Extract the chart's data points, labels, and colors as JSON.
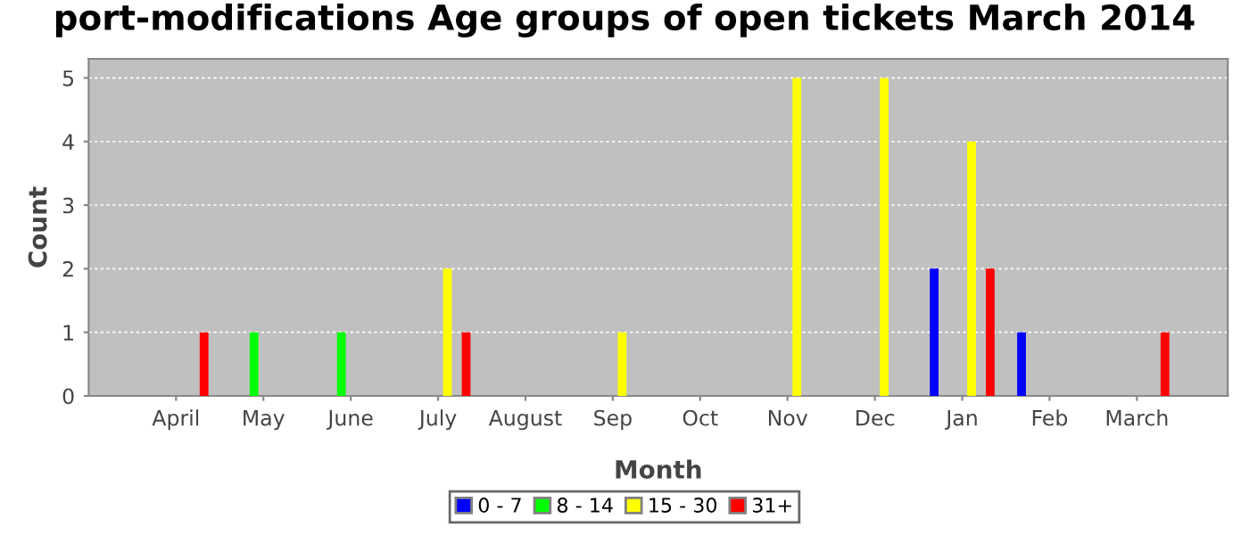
{
  "chart_data": {
    "type": "bar",
    "title": "port-modifications Age groups of open tickets March 2014",
    "xlabel": "Month",
    "ylabel": "Count",
    "categories": [
      "April",
      "May",
      "June",
      "July",
      "August",
      "Sep",
      "Oct",
      "Nov",
      "Dec",
      "Jan",
      "Feb",
      "March"
    ],
    "series": [
      {
        "name": "0 - 7",
        "color": "#0000ff",
        "values": [
          null,
          null,
          null,
          null,
          null,
          null,
          null,
          null,
          null,
          2,
          1,
          null
        ]
      },
      {
        "name": "8 - 14",
        "color": "#00ff00",
        "values": [
          null,
          1,
          1,
          null,
          null,
          null,
          null,
          null,
          null,
          null,
          null,
          null
        ]
      },
      {
        "name": "15 - 30",
        "color": "#ffff00",
        "values": [
          null,
          null,
          null,
          2,
          null,
          1,
          null,
          5,
          5,
          4,
          null,
          null
        ]
      },
      {
        "name": "31+",
        "color": "#ff0000",
        "values": [
          1,
          null,
          null,
          1,
          null,
          null,
          null,
          null,
          null,
          2,
          null,
          1
        ]
      }
    ],
    "ylim": [
      0,
      5.3
    ],
    "yticks": [
      0,
      1,
      2,
      3,
      4,
      5
    ],
    "grid": "y",
    "legend": "bottom"
  }
}
